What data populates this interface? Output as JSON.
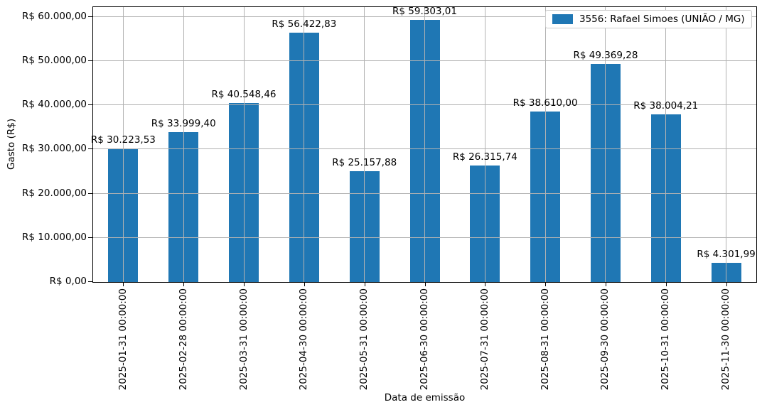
{
  "chart_data": {
    "type": "bar",
    "title": "",
    "xlabel": "Data de emissão",
    "ylabel": "Gasto (R$)",
    "series_name": "3556: Rafael Simoes (UNIÃO / MG)",
    "bar_color": "#1f77b4",
    "grid": true,
    "grid_color": "#b2b2b2",
    "legend_position": "upper right",
    "ylim": [
      0,
      62250
    ],
    "categories": [
      "2025-01-31 00:00:00",
      "2025-02-28 00:00:00",
      "2025-03-31 00:00:00",
      "2025-04-30 00:00:00",
      "2025-05-31 00:00:00",
      "2025-06-30 00:00:00",
      "2025-07-31 00:00:00",
      "2025-08-31 00:00:00",
      "2025-09-30 00:00:00",
      "2025-10-31 00:00:00",
      "2025-11-30 00:00:00"
    ],
    "values": [
      30223.53,
      33999.4,
      40548.46,
      56422.83,
      25157.88,
      59303.01,
      26315.74,
      38610.0,
      49369.28,
      38004.21,
      4301.99
    ],
    "value_labels": [
      "R$ 30.223,53",
      "R$ 33.999,40",
      "R$ 40.548,46",
      "R$ 56.422,83",
      "R$ 25.157,88",
      "R$ 59.303,01",
      "R$ 26.315,74",
      "R$ 38.610,00",
      "R$ 49.369,28",
      "R$ 38.004,21",
      "R$ 4.301,99"
    ],
    "y_ticks": [
      {
        "value": 0,
        "label": "R$ 0,00"
      },
      {
        "value": 10000,
        "label": "R$ 10.000,00"
      },
      {
        "value": 20000,
        "label": "R$ 20.000,00"
      },
      {
        "value": 30000,
        "label": "R$ 30.000,00"
      },
      {
        "value": 40000,
        "label": "R$ 40.000,00"
      },
      {
        "value": 50000,
        "label": "R$ 50.000,00"
      },
      {
        "value": 60000,
        "label": "R$ 60.000,00"
      }
    ]
  }
}
